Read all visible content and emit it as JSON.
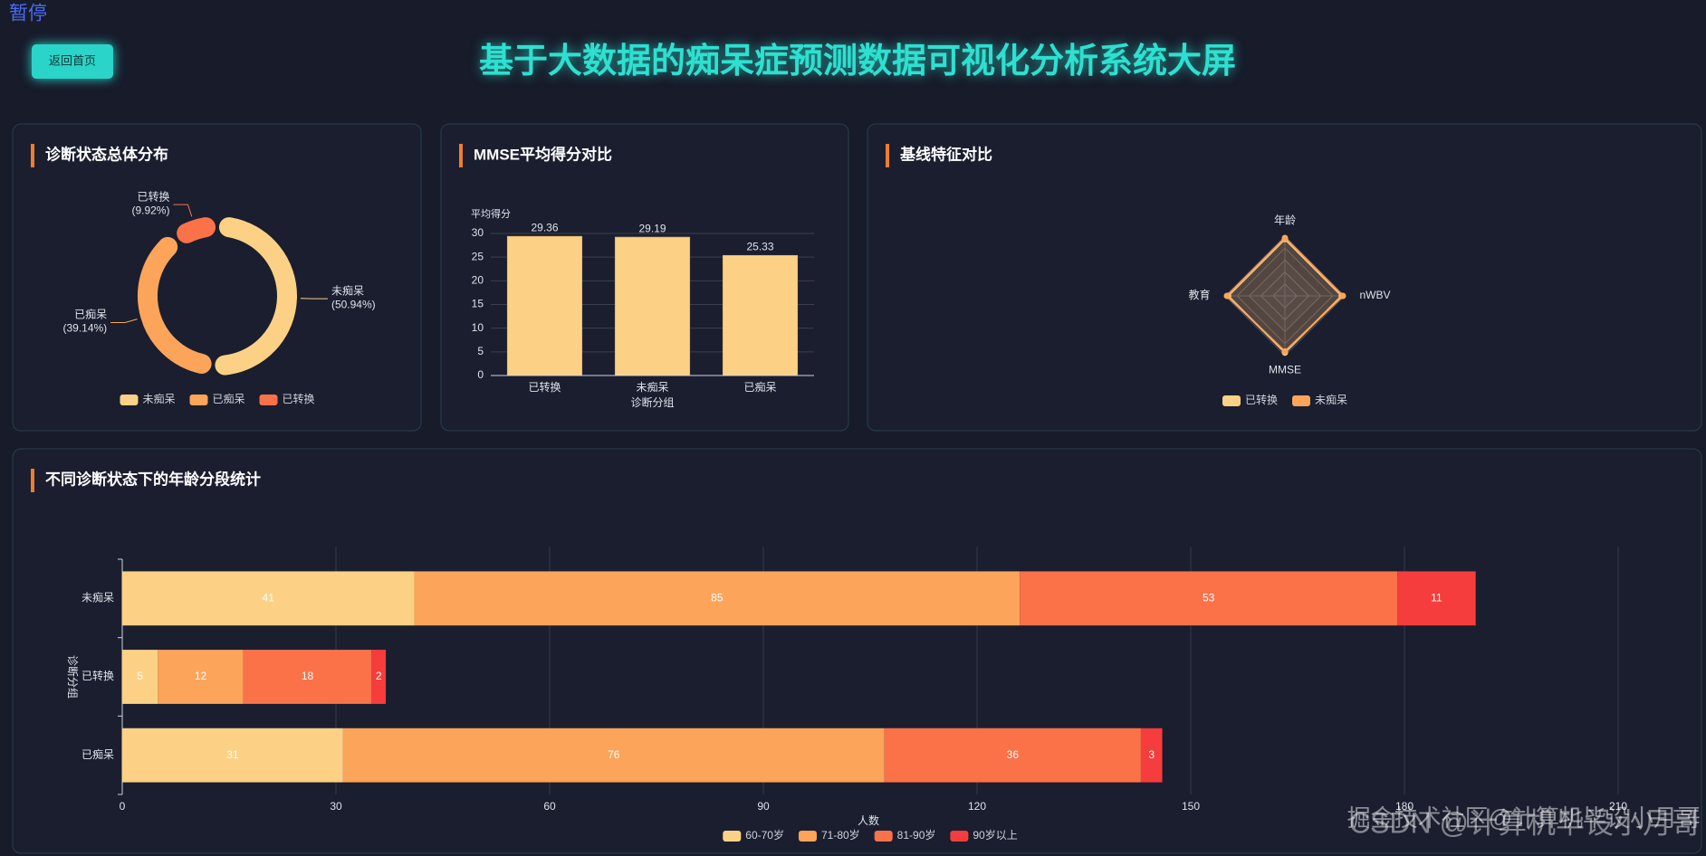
{
  "header": {
    "pause_label": "暂停",
    "back_button": "返回首页",
    "title": "基于大数据的痴呆症预测数据可视化分析系统大屏"
  },
  "watermarks": [
    "掘金技术社区@计算机毕设小月哥",
    "CSDN @计算机毕设小月哥"
  ],
  "chart_data": [
    {
      "type": "pie",
      "donut": true,
      "title": "诊断状态总体分布",
      "categories": [
        "未痴呆",
        "已痴呆",
        "已转换"
      ],
      "values": [
        50.94,
        39.14,
        9.92
      ],
      "value_labels": [
        "(50.94%)",
        "(39.14%)",
        "(9.92%)"
      ],
      "colors": [
        "#fdd185",
        "#fca45a",
        "#fb7249"
      ],
      "legend": "bottom"
    },
    {
      "type": "bar",
      "title": "MMSE平均得分对比",
      "y_label": "平均得分",
      "x_label": "诊断分组",
      "categories": [
        "已转换",
        "未痴呆",
        "已痴呆"
      ],
      "values": [
        29.36,
        29.19,
        25.33
      ],
      "color": "#fdd185",
      "ylim": [
        0,
        30
      ],
      "yticks": [
        0,
        5,
        10,
        15,
        20,
        25,
        30
      ],
      "grid": true
    },
    {
      "type": "radar",
      "title": "基线特征对比",
      "indicators": [
        "年龄",
        "nWBV",
        "MMSE",
        "教育"
      ],
      "rlim": [
        0,
        1
      ],
      "series": [
        {
          "name": "已转换",
          "color": "#fdd185",
          "values": [
            0.95,
            0.95,
            0.95,
            0.95
          ]
        },
        {
          "name": "未痴呆",
          "color": "#fca45a",
          "values": [
            0.97,
            0.97,
            0.93,
            0.97
          ]
        }
      ],
      "legend": "bottom"
    },
    {
      "type": "bar",
      "orientation": "horizontal",
      "stacked": true,
      "title": "不同诊断状态下的年龄分段统计",
      "y_label": "诊断分组",
      "x_label": "人数",
      "categories": [
        "未痴呆",
        "已转换",
        "已痴呆"
      ],
      "series": [
        {
          "name": "60-70岁",
          "color": "#fdd185",
          "values": [
            41,
            5,
            31
          ]
        },
        {
          "name": "71-80岁",
          "color": "#fca45a",
          "values": [
            85,
            12,
            76
          ]
        },
        {
          "name": "81-90岁",
          "color": "#fb7249",
          "values": [
            53,
            18,
            36
          ]
        },
        {
          "name": "90岁以上",
          "color": "#f53d3d",
          "values": [
            11,
            2,
            3
          ]
        }
      ],
      "xlim": [
        0,
        210
      ],
      "xticks": [
        0,
        30,
        60,
        90,
        120,
        150,
        180,
        210
      ],
      "grid": true,
      "legend": "bottom"
    }
  ]
}
